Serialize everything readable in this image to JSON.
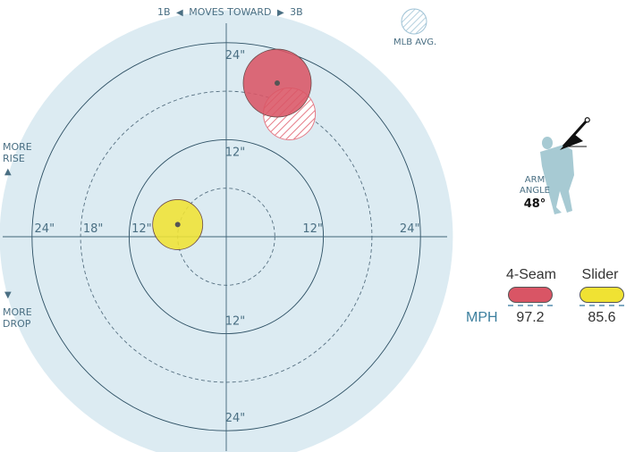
{
  "header": {
    "left_base": "1B",
    "moves_toward": "MOVES TOWARD",
    "right_base": "3B",
    "left_arrow_icon": "triangle-left",
    "right_arrow_icon": "triangle-right"
  },
  "side": {
    "rise_line1": "MORE",
    "rise_line2": "RISE",
    "rise_icon": "triangle-up",
    "drop_line1": "MORE",
    "drop_line2": "DROP",
    "drop_icon": "triangle-down"
  },
  "mlb_avg_label": "MLB AVG.",
  "arm_angle": {
    "label_line1": "ARM",
    "label_line2": "ANGLE",
    "value": "48°",
    "degrees": 48,
    "figure_icon": "pitcher-silhouette"
  },
  "colors": {
    "field": "#dcebf2",
    "rings": "#2c4f63",
    "four_seam": "#d95565",
    "slider": "#f0e233",
    "avg_hatch": "#e57a86",
    "mph_text": "#3c7f9e"
  },
  "chart_data": {
    "type": "scatter",
    "xlabel": "",
    "ylabel": "",
    "xlim": [
      -28,
      28
    ],
    "ylim": [
      -28,
      28
    ],
    "units": "inches",
    "rings_solid": [
      12,
      24
    ],
    "rings_dashed": [
      6,
      18
    ],
    "tick_labels": {
      "x_left": [
        "24\"",
        "18\"",
        "12\""
      ],
      "x_right": [
        "12\"",
        "24\""
      ],
      "y_top": [
        "24\"",
        "12\""
      ],
      "y_bottom": [
        "12\"",
        "24\""
      ]
    },
    "series": [
      {
        "name": "4-Seam",
        "x": 6.3,
        "y": 19.0,
        "mph": 97.2,
        "mph_label": "97.2",
        "color": "#d95565",
        "mlb_avg": {
          "x": 7.8,
          "y": 15.2
        }
      },
      {
        "name": "Slider",
        "x": -6.0,
        "y": 1.5,
        "mph": 85.6,
        "mph_label": "85.6",
        "color": "#f0e233"
      }
    ]
  },
  "legend": {
    "mph_label": "MPH"
  }
}
